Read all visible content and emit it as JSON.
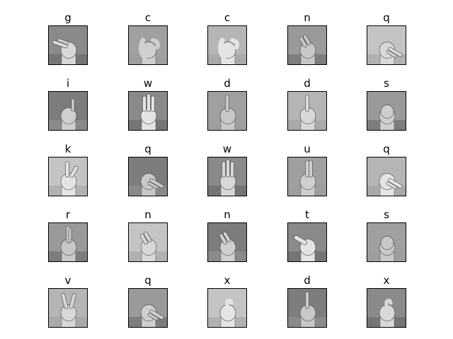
{
  "labels": [
    [
      "g",
      "c",
      "c",
      "n",
      "q"
    ],
    [
      "i",
      "w",
      "d",
      "d",
      "s"
    ],
    [
      "k",
      "q",
      "w",
      "u",
      "q"
    ],
    [
      "r",
      "n",
      "n",
      "t",
      "s"
    ],
    [
      "v",
      "q",
      "x",
      "d",
      "x"
    ]
  ],
  "colors": {
    "background": "#ffffff",
    "frame": "#000000",
    "label": "#000000"
  }
}
